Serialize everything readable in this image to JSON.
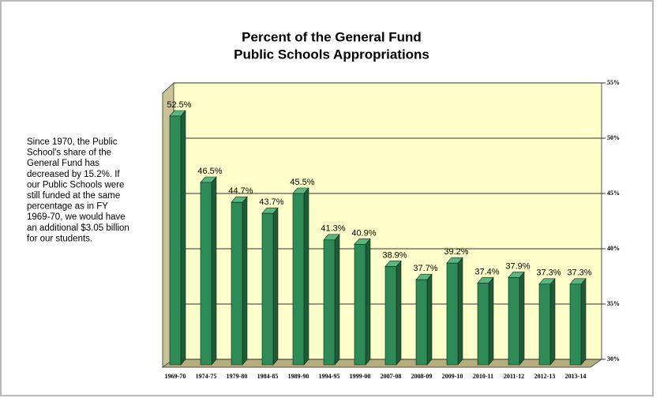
{
  "chart_data": {
    "type": "bar3d",
    "title": [
      "Percent of the General Fund",
      "Public Schools Appropriations"
    ],
    "annotation": [
      "Since 1970, the Public",
      "School's share of the",
      "General Fund has",
      "decreased by 15.2%.  If",
      "our Public Schools were",
      "still funded at the same",
      "percentage as in FY",
      "1969-70, we would have",
      "an additional $3.05 billion",
      "for our students."
    ],
    "categories": [
      "1969-70",
      "1974-75",
      "1979-80",
      "1984-85",
      "1989-90",
      "1994-95",
      "1999-00",
      "2007-08",
      "2008-09",
      "2009-10",
      "2010-11",
      "2011-12",
      "2012-13",
      "2013-14"
    ],
    "values": [
      52.5,
      46.5,
      44.7,
      43.7,
      45.5,
      41.3,
      40.9,
      38.9,
      37.7,
      39.2,
      37.4,
      37.9,
      37.3,
      37.3
    ],
    "value_labels": [
      "52.5%",
      "46.5%",
      "44.7%",
      "43.7%",
      "45.5%",
      "41.3%",
      "40.9%",
      "38.9%",
      "37.7%",
      "39.2%",
      "37.4%",
      "37.9%",
      "37.3%",
      "37.3%"
    ],
    "color": "#2e8b57",
    "ylim": [
      30,
      55
    ],
    "yticks": [
      {
        "value": 30,
        "label": "30%"
      },
      {
        "value": 35,
        "label": "35%"
      },
      {
        "value": 40,
        "label": "40%"
      },
      {
        "value": 45,
        "label": "45%"
      },
      {
        "value": 50,
        "label": "50%"
      },
      {
        "value": 55,
        "label": "55%"
      }
    ],
    "grid": true
  }
}
